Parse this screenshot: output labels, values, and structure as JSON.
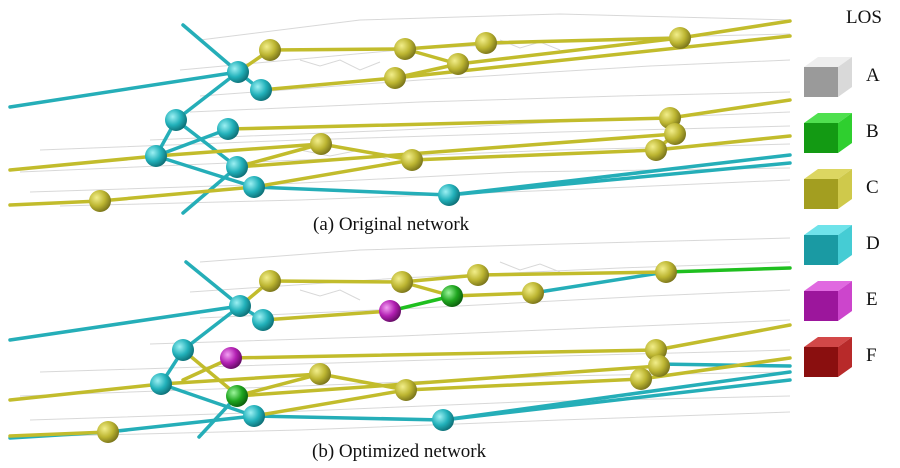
{
  "panels": [
    {
      "caption": "(a) Original network"
    },
    {
      "caption": "(b) Optimized network"
    }
  ],
  "legend": {
    "title": "LOS",
    "items": [
      {
        "label": "A",
        "color": "#c8c8c8"
      },
      {
        "label": "B",
        "color": "#1fbf1f"
      },
      {
        "label": "C",
        "color": "#c2bc2c"
      },
      {
        "label": "D",
        "color": "#2bb5bd"
      },
      {
        "label": "E",
        "color": "#c027c0"
      },
      {
        "label": "F",
        "color": "#b01c1c"
      }
    ]
  }
}
